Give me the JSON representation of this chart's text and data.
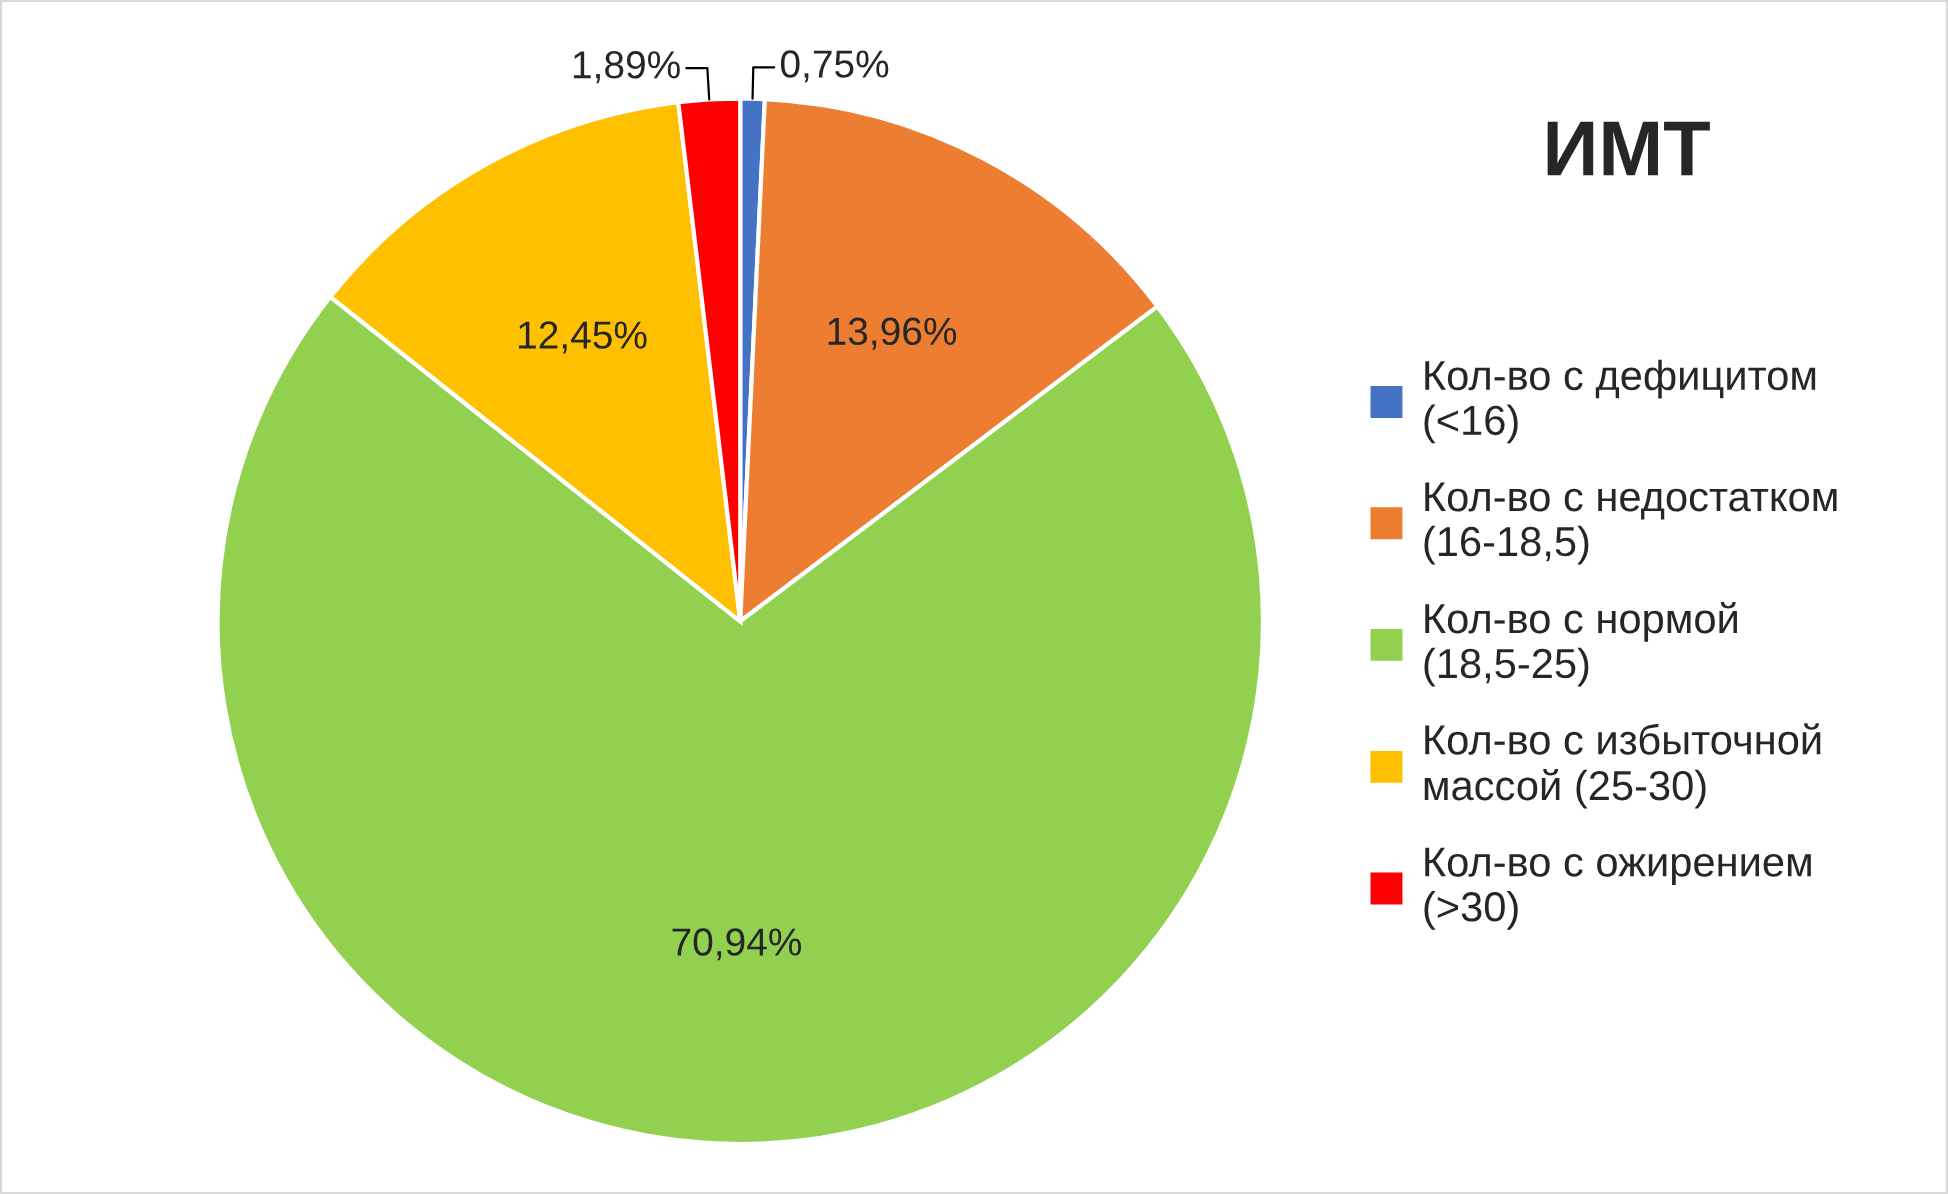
{
  "chart_data": {
    "type": "pie",
    "title": "ИМТ",
    "categories": [
      "Кол-во с дефицитом (<16)",
      "Кол-во с недостатком (16-18,5)",
      "Кол-во с нормой (18,5-25)",
      "Кол-во с избыточной массой (25-30)",
      "Кол-во с ожирением (>30)"
    ],
    "values": [
      0.75,
      13.96,
      70.94,
      12.45,
      1.89
    ],
    "value_labels": [
      "0,75%",
      "13,96%",
      "70,94%",
      "12,45%",
      "1,89%"
    ],
    "colors": [
      "#4472c4",
      "#ed7d31",
      "#92d050",
      "#ffc000",
      "#ff0000"
    ],
    "legend": "right"
  }
}
